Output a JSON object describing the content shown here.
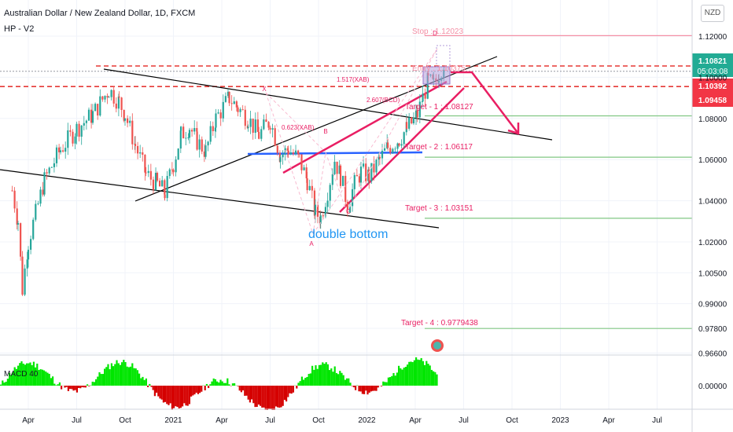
{
  "header": {
    "title": "Australian Dollar / New Zealand Dollar, 1D, FXCM",
    "indicator": "HP - V2"
  },
  "currency_badge": "NZD",
  "macd_label": "MACD 40",
  "colors": {
    "bull": "#26a69a",
    "bear": "#ef5350",
    "trend": "#000000",
    "neckline": "#2962ff",
    "pink": "#e91e63",
    "stop": "#f48fa5",
    "target": "#81c784",
    "macd_up": "#00e600",
    "macd_dn": "#d50000",
    "annotation_blue": "#2196f3",
    "price_green": "#22ab94",
    "price_red": "#f23645"
  },
  "price_tags": [
    {
      "lines": [
        "1.10821",
        "05:03:08"
      ],
      "value": 1.10821,
      "color": "#22ab94"
    },
    {
      "lines": [
        "1.10392"
      ],
      "value": 1.10392,
      "color": "#f23645"
    },
    {
      "lines": [
        "1.09458"
      ],
      "value": 1.09458,
      "color": "#f23645"
    }
  ],
  "chart_data": {
    "type": "candlestick",
    "symbol": "Australian Dollar / New Zealand Dollar",
    "timeframe": "1D",
    "source": "FXCM",
    "ylim": [
      0.963,
      1.133
    ],
    "y_ticks": [
      "1.12000",
      "1.10000",
      "1.08000",
      "1.06000",
      "1.04000",
      "1.02000",
      "1.00500",
      "0.99000",
      "0.97800",
      "0.96600"
    ],
    "y_tick_values": [
      1.12,
      1.1,
      1.08,
      1.06,
      1.04,
      1.02,
      1.005,
      0.99,
      0.978,
      0.966
    ],
    "x_ticks": [
      "Apr",
      "Jul",
      "Oct",
      "2021",
      "Apr",
      "Jul",
      "Oct",
      "2022",
      "Apr",
      "Jul",
      "Oct",
      "2023",
      "Apr",
      "Jul"
    ],
    "x_tick_months": [
      "2020-04",
      "2020-07",
      "2020-10",
      "2021-01",
      "2021-04",
      "2021-07",
      "2021-10",
      "2022-01",
      "2022-04",
      "2022-07",
      "2022-10",
      "2023-01",
      "2023-04",
      "2023-07"
    ],
    "price_path": [
      [
        "2020-03-01",
        1.045
      ],
      [
        "2020-03-12",
        1.03
      ],
      [
        "2020-03-20",
        0.997
      ],
      [
        "2020-04-01",
        1.02
      ],
      [
        "2020-05-01",
        1.05
      ],
      [
        "2020-06-01",
        1.065
      ],
      [
        "2020-07-01",
        1.075
      ],
      [
        "2020-08-01",
        1.082
      ],
      [
        "2020-09-01",
        1.094
      ],
      [
        "2020-09-20",
        1.088
      ],
      [
        "2020-10-01",
        1.082
      ],
      [
        "2020-10-20",
        1.067
      ],
      [
        "2020-11-10",
        1.053
      ],
      [
        "2020-12-01",
        1.048
      ],
      [
        "2020-12-15",
        1.044
      ],
      [
        "2021-01-01",
        1.058
      ],
      [
        "2021-01-15",
        1.072
      ],
      [
        "2021-02-01",
        1.076
      ],
      [
        "2021-02-15",
        1.069
      ],
      [
        "2021-03-01",
        1.064
      ],
      [
        "2021-03-20",
        1.08
      ],
      [
        "2021-04-15",
        1.09
      ],
      [
        "2021-05-01",
        1.085
      ],
      [
        "2021-05-20",
        1.08
      ],
      [
        "2021-06-10",
        1.072
      ],
      [
        "2021-07-01",
        1.079
      ],
      [
        "2021-07-20",
        1.062
      ],
      [
        "2021-08-05",
        1.065
      ],
      [
        "2021-08-25",
        1.06
      ],
      [
        "2021-09-10",
        1.05
      ],
      [
        "2021-09-25",
        1.034
      ],
      [
        "2021-10-05",
        1.032
      ],
      [
        "2021-10-18",
        1.045
      ],
      [
        "2021-11-01",
        1.06
      ],
      [
        "2021-11-12",
        1.052
      ],
      [
        "2021-11-25",
        1.038
      ],
      [
        "2021-12-08",
        1.048
      ],
      [
        "2021-12-20",
        1.054
      ],
      [
        "2022-01-05",
        1.052
      ],
      [
        "2022-01-25",
        1.06
      ],
      [
        "2022-02-10",
        1.066
      ],
      [
        "2022-03-01",
        1.07
      ],
      [
        "2022-03-15",
        1.075
      ],
      [
        "2022-03-28",
        1.079
      ],
      [
        "2022-04-05",
        1.082
      ],
      [
        "2022-04-15",
        1.09
      ],
      [
        "2022-04-25",
        1.098
      ],
      [
        "2022-05-05",
        1.096
      ],
      [
        "2022-05-15",
        1.102
      ],
      [
        "2022-05-25",
        1.108
      ]
    ],
    "harmonic_points": [
      "X",
      "A",
      "B",
      "C",
      "D"
    ],
    "harmonic_ratios": [
      "0.623(XAB)",
      "1.517(XAB)",
      "2.607(BCD)"
    ],
    "stop": {
      "label": "Stop : 1.12023",
      "value": 1.12023
    },
    "entry": {
      "label": "Entry : 1.10375",
      "value": 1.10375
    },
    "targets": [
      {
        "label": "Target - 1 : 1.08127",
        "value": 1.08127
      },
      {
        "label": "Target - 2 : 1.06117",
        "value": 1.06117
      },
      {
        "label": "Target - 3 : 1.03151",
        "value": 1.03151
      },
      {
        "label": "Target - 4 : 0.9779438",
        "value": 0.9779438
      }
    ],
    "annotation": "double bottom",
    "macd_pane_label": "MACD 40",
    "macd_zero_label": "0.00000"
  }
}
